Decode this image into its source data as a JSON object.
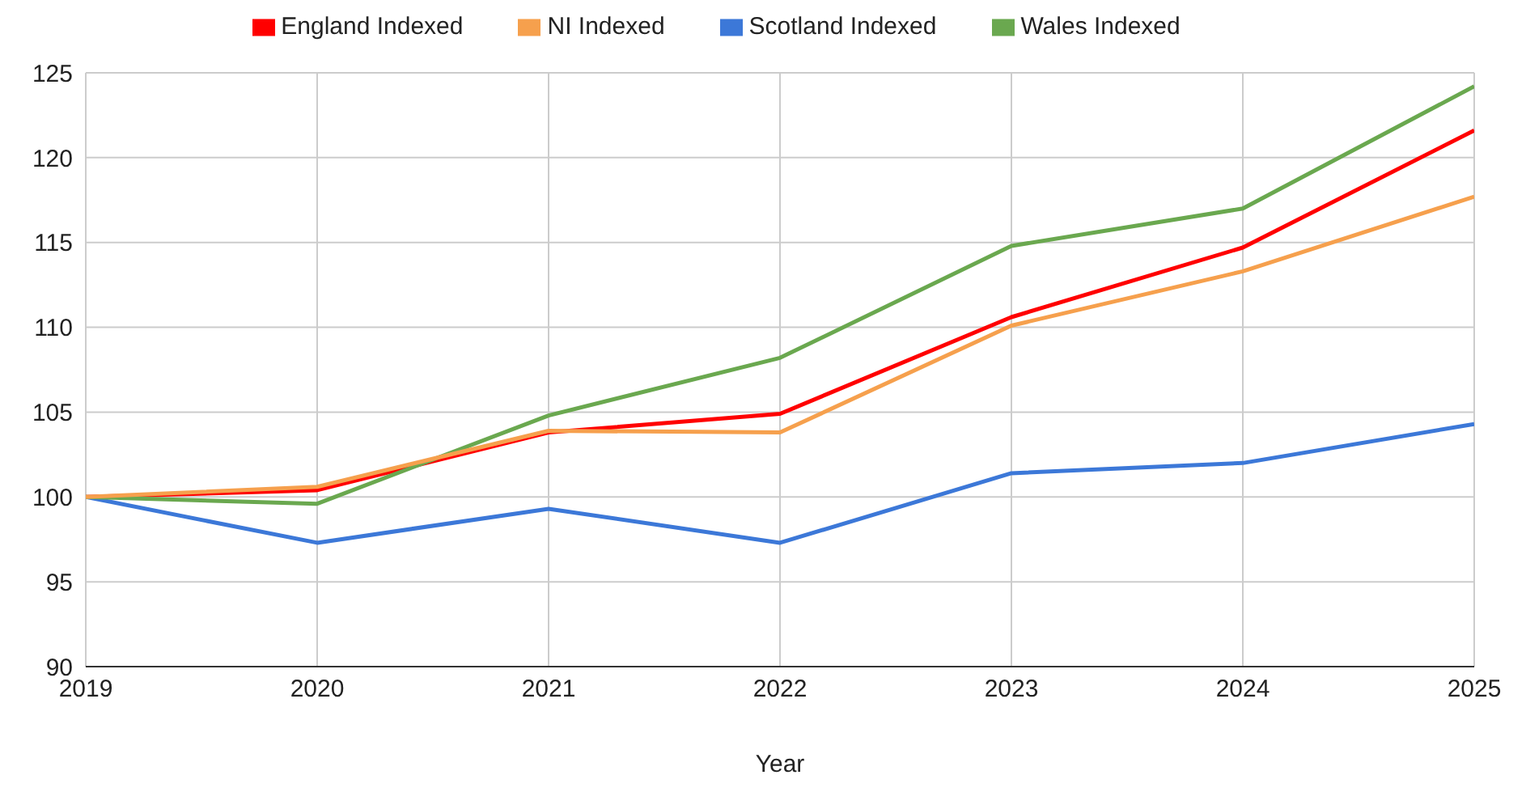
{
  "chart_data": {
    "type": "line",
    "xlabel": "Year",
    "x": [
      2019,
      2020,
      2021,
      2022,
      2023,
      2024,
      2025
    ],
    "series": [
      {
        "name": "England Indexed",
        "color": "#ff0000",
        "values": [
          100,
          100.4,
          103.8,
          104.9,
          110.6,
          114.7,
          121.6
        ]
      },
      {
        "name": "Scotland Indexed",
        "color": "#3c78d8",
        "values": [
          100,
          97.3,
          99.3,
          97.3,
          101.4,
          102.0,
          104.3
        ]
      },
      {
        "name": "Wales Indexed",
        "color": "#6aa84f",
        "values": [
          100,
          99.6,
          104.8,
          108.2,
          114.8,
          117.0,
          124.2
        ]
      },
      {
        "name": "NI Indexed",
        "color": "#f6a04d",
        "values": [
          100,
          100.6,
          103.9,
          103.8,
          110.1,
          113.3,
          117.7
        ]
      }
    ],
    "xlim": [
      2019,
      2025
    ],
    "xticks": [
      2019,
      2020,
      2021,
      2022,
      2023,
      2024,
      2025
    ],
    "ylim": [
      90,
      125
    ],
    "yticks": [
      90,
      95,
      100,
      105,
      110,
      115,
      120,
      125
    ],
    "grid": true,
    "legend": "top",
    "marker": "none",
    "line_style": "solid"
  }
}
